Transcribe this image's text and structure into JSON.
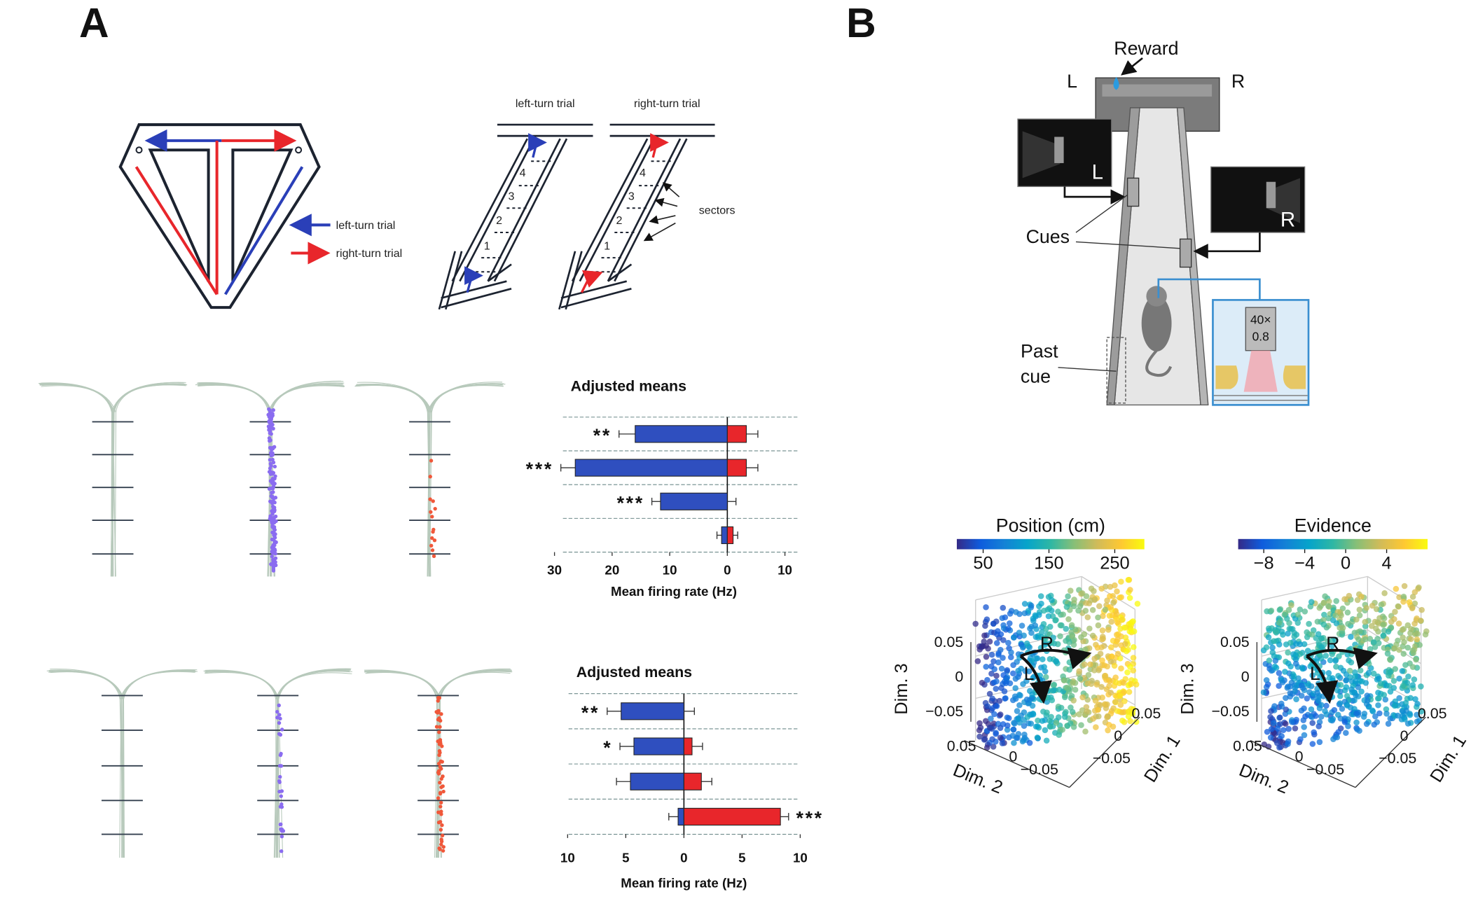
{
  "panel_a": {
    "label": "A",
    "maze_legend": [
      "left-turn trial",
      "right-turn trial"
    ],
    "track_titles": [
      "left-turn trial",
      "right-turn trial"
    ],
    "sector_numbers": [
      "1",
      "2",
      "3",
      "4"
    ],
    "sectors_label": "sectors"
  },
  "panel_b": {
    "label": "B",
    "reward": "Reward",
    "left": "L",
    "right": "R",
    "cues": "Cues",
    "past_cue": [
      "Past",
      "cue"
    ],
    "objective": [
      "40×",
      "0.8"
    ],
    "dim_labels": [
      "Dim. 1",
      "Dim. 2",
      "Dim. 3"
    ],
    "dim3_ticks": [
      "0.05",
      "0",
      "−0.05"
    ],
    "dim2_ticks": [
      "0.05",
      "0",
      "−0.05"
    ],
    "dim1_ticks": [
      "0.05",
      "0",
      "−0.05"
    ],
    "trajectory_labels": [
      "R",
      "L"
    ]
  },
  "chart_data": [
    {
      "type": "bar",
      "orientation": "horizontal",
      "title": "Adjusted means",
      "x_label": "Mean firing rate (Hz)",
      "series": [
        {
          "color": "#2f4fbf",
          "values": [
            -16,
            -26.4,
            -11.6,
            -1
          ],
          "errors": [
            2.8,
            2.5,
            1.5,
            0.8
          ]
        },
        {
          "color": "#e8262b",
          "values": [
            3.3,
            3.3,
            0,
            1
          ],
          "errors": [
            2,
            2,
            1.5,
            0.8
          ]
        }
      ],
      "annotations": [
        "**",
        "***",
        "***",
        null
      ],
      "xlim": [
        -30,
        12
      ],
      "xticks": [
        {
          "value": -30,
          "label": "30"
        },
        {
          "value": -20,
          "label": "20"
        },
        {
          "value": -10,
          "label": "10"
        },
        0,
        10
      ]
    },
    {
      "type": "bar",
      "orientation": "horizontal",
      "title": "Adjusted means",
      "x_label": "Mean firing rate (Hz)",
      "series": [
        {
          "color": "#2f4fbf",
          "values": [
            -5.4,
            -4.3,
            -4.6,
            -0.5
          ],
          "errors": [
            1.2,
            1.2,
            1.2,
            0.8
          ]
        },
        {
          "color": "#e8262b",
          "values": [
            0,
            0.7,
            1.5,
            8.3
          ],
          "errors": [
            0.9,
            0.9,
            0.9,
            0.7
          ]
        }
      ],
      "annotations": [
        "**",
        "*",
        null,
        "***"
      ],
      "xlim": [
        -10,
        10
      ],
      "xticks": [
        {
          "value": -10,
          "label": "10"
        },
        {
          "value": -5,
          "label": "5"
        },
        0,
        5,
        10
      ]
    },
    {
      "type": "colorbar",
      "title": "Position (cm)",
      "colors": [
        "#352a87",
        "#0f5cdd",
        "#1481d6",
        "#06a4ca",
        "#2eb7a4",
        "#87bf77",
        "#d1bb59",
        "#fec832",
        "#f9fb0e"
      ],
      "xlim": [
        10,
        295
      ],
      "xticks": [
        50,
        150,
        250
      ]
    },
    {
      "type": "colorbar",
      "title": "Evidence",
      "colors": [
        "#352a87",
        "#0f5cdd",
        "#1481d6",
        "#06a4ca",
        "#2eb7a4",
        "#87bf77",
        "#d1bb59",
        "#fec832",
        "#f9fb0e"
      ],
      "xlim": [
        -10.5,
        8
      ],
      "xticks": [
        {
          "value": -8,
          "label": "−8"
        },
        {
          "value": -4,
          "label": "−4"
        },
        0,
        4
      ]
    }
  ]
}
